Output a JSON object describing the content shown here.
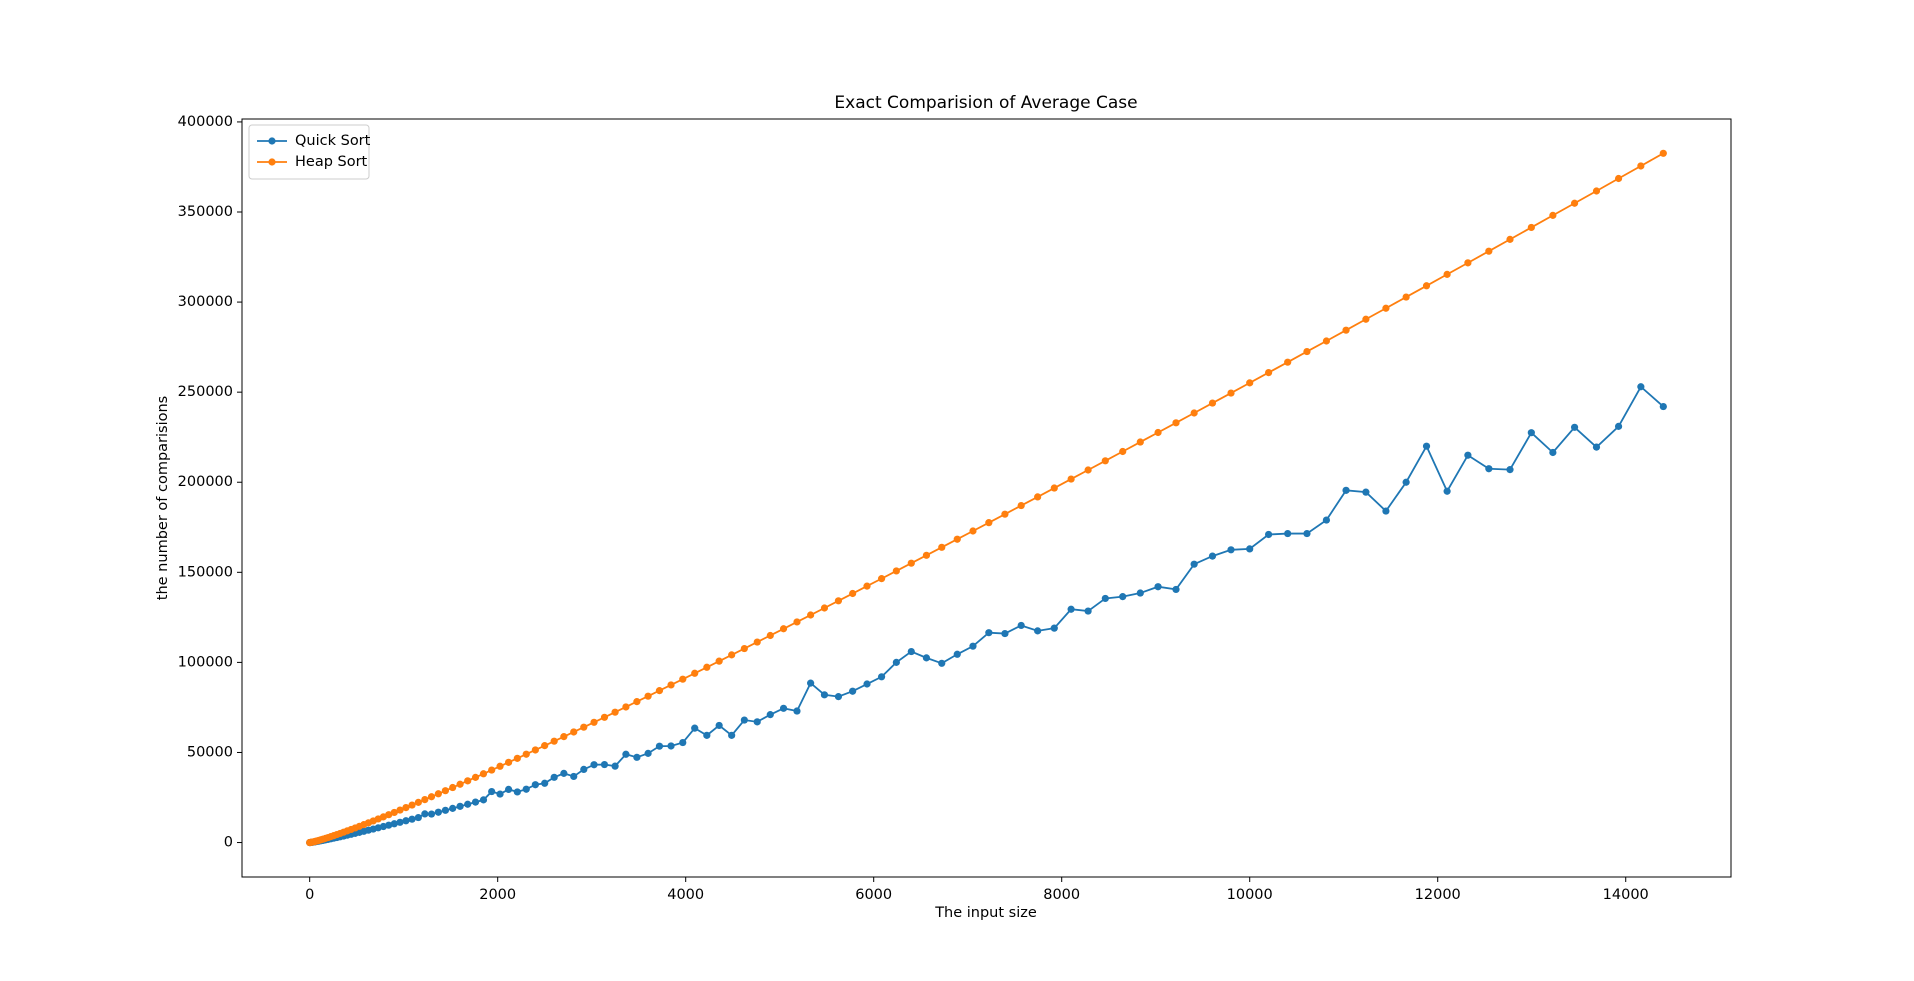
{
  "chart_data": {
    "type": "line",
    "title": "Exact Comparision of Average Case",
    "x_label": "The input size",
    "y_label": "the number of comparisions",
    "x": [
      0,
      1,
      4,
      9,
      16,
      25,
      36,
      49,
      64,
      81,
      100,
      121,
      144,
      169,
      196,
      225,
      256,
      289,
      324,
      361,
      400,
      441,
      484,
      529,
      576,
      625,
      676,
      729,
      784,
      841,
      900,
      961,
      1024,
      1089,
      1156,
      1225,
      1296,
      1369,
      1444,
      1521,
      1600,
      1681,
      1764,
      1849,
      1936,
      2025,
      2116,
      2209,
      2304,
      2401,
      2500,
      2601,
      2704,
      2809,
      2916,
      3025,
      3136,
      3249,
      3364,
      3481,
      3600,
      3721,
      3844,
      3969,
      4096,
      4225,
      4356,
      4489,
      4624,
      4761,
      4900,
      5041,
      5184,
      5329,
      5476,
      5625,
      5776,
      5929,
      6084,
      6241,
      6400,
      6561,
      6724,
      6889,
      7056,
      7225,
      7396,
      7569,
      7744,
      7921,
      8100,
      8281,
      8464,
      8649,
      8836,
      9025,
      9216,
      9409,
      9604,
      9801,
      10000,
      10201,
      10404,
      10609,
      10816,
      11025,
      11236,
      11449,
      11664,
      11881,
      12100,
      12321,
      12544,
      12769,
      12996,
      13225,
      13456,
      13689,
      13924,
      14161,
      14400
    ],
    "series": [
      {
        "name": "Quick Sort",
        "color": "#1f77b4",
        "values": [
          0,
          0,
          9,
          34,
          76,
          137,
          220,
          325,
          453,
          606,
          784,
          988,
          1218,
          1476,
          1761,
          2075,
          2417,
          2787,
          3188,
          3619,
          4080,
          4571,
          5093,
          5648,
          6233,
          6850,
          7498,
          8181,
          8894,
          9642,
          10422,
          11235,
          12083,
          12963,
          13878,
          15900,
          15813,
          16830,
          17884,
          18971,
          20096,
          21256,
          22447,
          23677,
          28300,
          26900,
          29500,
          28100,
          29600,
          32100,
          32900,
          36200,
          38400,
          36700,
          40600,
          43200,
          43300,
          42400,
          49000,
          47300,
          49500,
          53500,
          53600,
          55500,
          63500,
          59500,
          65000,
          59500,
          68000,
          67000,
          71000,
          74500,
          73000,
          88500,
          82000,
          81000,
          84000,
          88000,
          92000,
          100000,
          106000,
          102500,
          99500,
          104500,
          109000,
          116500,
          116000,
          120500,
          117500,
          119000,
          129500,
          128500,
          135500,
          136500,
          138500,
          142000,
          140500,
          154500,
          159000,
          162500,
          163000,
          171000,
          171500,
          171500,
          179000,
          195500,
          194500,
          184000,
          200000,
          220000,
          195000,
          215000,
          207500,
          207000,
          227500,
          216500,
          230500,
          219500,
          231000,
          253000,
          242000
        ]
      },
      {
        "name": "Heap Sort",
        "color": "#ff7f0e",
        "values": [
          0,
          0,
          12,
          48,
          111,
          206,
          334,
          498,
          700,
          941,
          1223,
          1546,
          1912,
          2322,
          2777,
          3278,
          3825,
          4418,
          5061,
          5751,
          6491,
          7280,
          8120,
          9012,
          9953,
          10948,
          11992,
          13093,
          14244,
          15451,
          16711,
          18025,
          19395,
          20817,
          22297,
          23834,
          25428,
          27073,
          28782,
          30542,
          32365,
          34245,
          36176,
          38171,
          40222,
          42339,
          44512,
          46742,
          49029,
          51381,
          53790,
          56254,
          58785,
          61382,
          64035,
          66744,
          69519,
          72362,
          75259,
          78225,
          81245,
          84333,
          87474,
          90684,
          93962,
          97293,
          100693,
          104163,
          107684,
          111293,
          114934,
          118665,
          122446,
          126297,
          130197,
          134190,
          138231,
          142343,
          146503,
          150758,
          155059,
          159432,
          163877,
          168367,
          172928,
          177562,
          182267,
          187045,
          191865,
          196789,
          201755,
          206795,
          211905,
          217055,
          222314,
          227611,
          232980,
          238424,
          243942,
          249494,
          255160,
          260860,
          266634,
          272524,
          278404,
          284401,
          290473,
          296575,
          302797,
          309048,
          315374,
          321775,
          328251,
          334803,
          341431,
          348135,
          354862,
          361663,
          368596,
          375550,
          382579
        ]
      }
    ],
    "xlim": [
      -720,
      15120
    ],
    "xticks": [
      0,
      2000,
      4000,
      6000,
      8000,
      10000,
      12000,
      14000
    ],
    "ylim": [
      -19125,
      401625
    ],
    "yticks": [
      0,
      50000,
      100000,
      150000,
      200000,
      250000,
      300000,
      350000,
      400000
    ],
    "legend": "upper left",
    "grid": false
  }
}
